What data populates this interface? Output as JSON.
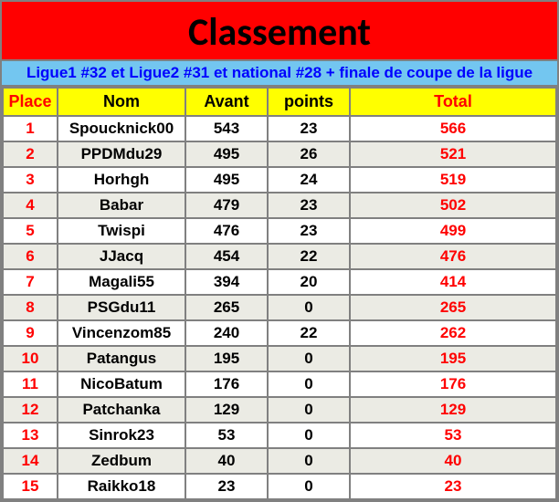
{
  "title": "Classement",
  "subtitle": "Ligue1 #32 et Ligue2 #31 et national #28 + finale de coupe de la ligue",
  "columns": {
    "place": "Place",
    "nom": "Nom",
    "avant": "Avant",
    "points": "points",
    "total": "Total"
  },
  "styling": {
    "title_bg": "#ff0000",
    "title_color": "#000000",
    "title_fontsize": 42,
    "subtitle_bg": "#73c6f0",
    "subtitle_color": "#0000ff",
    "subtitle_fontsize": 17,
    "header_bg": "#ffff00",
    "header_color": "#0000ff",
    "header_fontsize": 18,
    "border_color": "#808080",
    "row_alt_bg": "#ebebe4",
    "row_bg": "#ffffff",
    "place_color": "#ff0000",
    "total_color": "#ff0000",
    "cell_fontsize": 17,
    "col_widths": {
      "place": 60,
      "nom": 140,
      "avant": 90,
      "points": 90
    }
  },
  "rows": [
    {
      "place": "1",
      "nom": "Spoucknick00",
      "avant": "543",
      "points": "23",
      "total": "566"
    },
    {
      "place": "2",
      "nom": "PPDMdu29",
      "avant": "495",
      "points": "26",
      "total": "521"
    },
    {
      "place": "3",
      "nom": "Horhgh",
      "avant": "495",
      "points": "24",
      "total": "519"
    },
    {
      "place": "4",
      "nom": "Babar",
      "avant": "479",
      "points": "23",
      "total": "502"
    },
    {
      "place": "5",
      "nom": "Twispi",
      "avant": "476",
      "points": "23",
      "total": "499"
    },
    {
      "place": "6",
      "nom": "JJacq",
      "avant": "454",
      "points": "22",
      "total": "476"
    },
    {
      "place": "7",
      "nom": "Magali55",
      "avant": "394",
      "points": "20",
      "total": "414"
    },
    {
      "place": "8",
      "nom": "PSGdu11",
      "avant": "265",
      "points": "0",
      "total": "265"
    },
    {
      "place": "9",
      "nom": "Vincenzom85",
      "avant": "240",
      "points": "22",
      "total": "262"
    },
    {
      "place": "10",
      "nom": "Patangus",
      "avant": "195",
      "points": "0",
      "total": "195"
    },
    {
      "place": "11",
      "nom": "NicoBatum",
      "avant": "176",
      "points": "0",
      "total": "176"
    },
    {
      "place": "12",
      "nom": "Patchanka",
      "avant": "129",
      "points": "0",
      "total": "129"
    },
    {
      "place": "13",
      "nom": "Sinrok23",
      "avant": "53",
      "points": "0",
      "total": "53"
    },
    {
      "place": "14",
      "nom": "Zedbum",
      "avant": "40",
      "points": "0",
      "total": "40"
    },
    {
      "place": "15",
      "nom": "Raikko18",
      "avant": "23",
      "points": "0",
      "total": "23"
    }
  ]
}
